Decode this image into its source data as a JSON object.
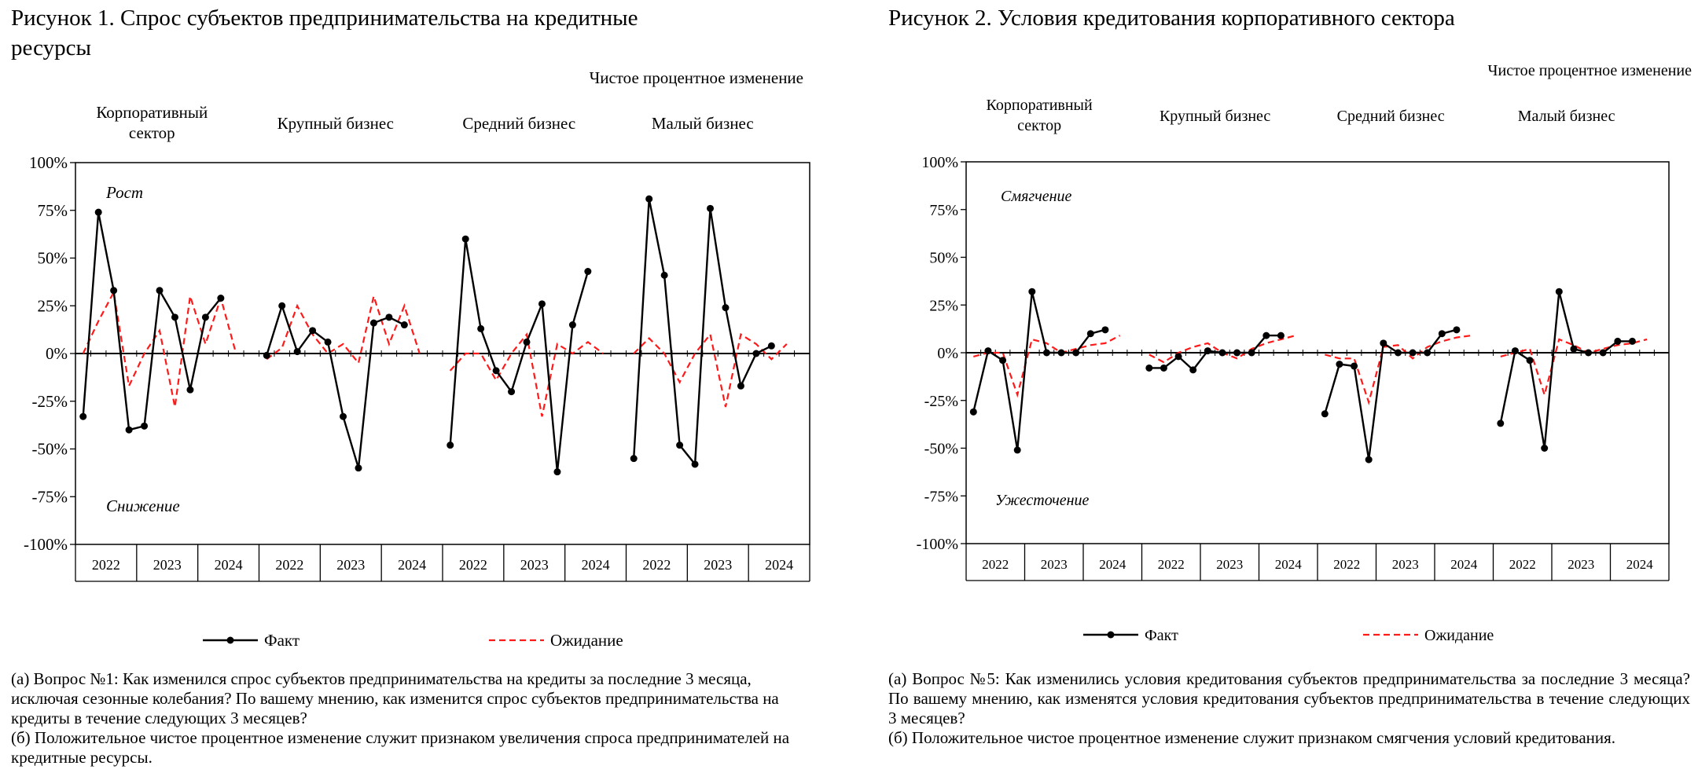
{
  "figures": [
    {
      "id": "fig1",
      "title": "Рисунок 1. Спрос субъектов предпринимательства на кредитные ресурсы",
      "title_lines": [
        "Рисунок 1. Спрос субъектов предпринимательства на кредитные",
        "ресурсы"
      ],
      "unit_label": "Чистое процентное изменение",
      "up_label": "Рост",
      "down_label": "Снижение",
      "notes": [
        "(а) Вопрос №1: Как изменился спрос субъектов предпринимательства на кредиты за последние 3 месяца, исключая сезонные колебания? По вашему мнению, как изменится спрос субъектов предпринимательства на кредиты в течение следующих 3 месяцев?",
        "(б) Положительное чистое процентное изменение служит признаком увеличения спроса предпринимателей на кредитные ресурсы."
      ]
    },
    {
      "id": "fig2",
      "title": "Рисунок 2. Условия кредитования корпоративного сектора",
      "title_lines": [
        "Рисунок 2. Условия кредитования корпоративного сектора"
      ],
      "unit_label": "Чистое процентное изменение",
      "up_label": "Смягчение",
      "down_label": "Ужесточение",
      "notes": [
        "(а) Вопрос №5: Как изменились условия кредитования субъектов предпринимательства за последние 3 месяца? По вашему мнению, как изменятся условия кредитования субъектов предпринимательства в течение следующих 3 месяцев?",
        "(б) Положительное чистое процентное изменение служит признаком смягчения условий кредитования."
      ]
    }
  ],
  "chart_data": [
    {
      "type": "line",
      "title": "Рисунок 1. Спрос субъектов предпринимательства на кредитные ресурсы",
      "ylabel": "Чистое процентное изменение",
      "ylim": [
        -100,
        100
      ],
      "yticks": [
        -100,
        -75,
        -50,
        -25,
        0,
        25,
        50,
        75,
        100
      ],
      "ytick_labels": [
        "-100%",
        "-75%",
        "-50%",
        "-25%",
        "0%",
        "25%",
        "50%",
        "75%",
        "100%"
      ],
      "grid": false,
      "legend": "bottom",
      "series_names": [
        "Факт",
        "Ожидание"
      ],
      "groups": [
        {
          "name_lines": [
            "Корпоративный",
            "сектор"
          ],
          "years": [
            "2022",
            "2023",
            "2024"
          ],
          "fact": [
            -33,
            74,
            33,
            -40,
            -38,
            33,
            19,
            -19,
            19,
            29
          ],
          "expect": [
            0,
            17,
            32,
            -17,
            0,
            12,
            -28,
            30,
            5,
            29,
            0
          ]
        },
        {
          "name_lines": [
            "Крупный бизнес"
          ],
          "years": [
            "2022",
            "2023",
            "2024"
          ],
          "fact": [
            -1,
            25,
            1,
            12,
            6,
            -33,
            -60,
            16,
            19,
            15
          ],
          "expect": [
            -3,
            3,
            25,
            10,
            0,
            5,
            -5,
            30,
            5,
            25,
            0
          ]
        },
        {
          "name_lines": [
            "Средний бизнес"
          ],
          "years": [
            "2022",
            "2023",
            "2024"
          ],
          "fact": [
            -48,
            60,
            13,
            -9,
            -20,
            6,
            26,
            -62,
            15,
            43
          ],
          "expect": [
            -9,
            0,
            0,
            -14,
            0,
            10,
            -33,
            5,
            0,
            6,
            0
          ]
        },
        {
          "name_lines": [
            "Малый бизнес"
          ],
          "years": [
            "2022",
            "2023",
            "2024"
          ],
          "fact": [
            -55,
            81,
            41,
            -48,
            -58,
            76,
            24,
            -17,
            0,
            4
          ],
          "expect": [
            0,
            8,
            0,
            -15,
            0,
            10,
            -28,
            10,
            5,
            -3,
            5
          ]
        }
      ]
    },
    {
      "type": "line",
      "title": "Рисунок 2. Условия кредитования корпоративного сектора",
      "ylabel": "Чистое процентное изменение",
      "ylim": [
        -100,
        100
      ],
      "yticks": [
        -100,
        -75,
        -50,
        -25,
        0,
        25,
        50,
        75,
        100
      ],
      "ytick_labels": [
        "-100%",
        "-75%",
        "-50%",
        "-25%",
        "0%",
        "25%",
        "50%",
        "75%",
        "100%"
      ],
      "grid": false,
      "legend": "bottom",
      "series_names": [
        "Факт",
        "Ожидание"
      ],
      "groups": [
        {
          "name_lines": [
            "Корпоративный",
            "сектор"
          ],
          "years": [
            "2022",
            "2023",
            "2024"
          ],
          "fact": [
            -31,
            1,
            -4,
            -51,
            32,
            0,
            0,
            0,
            10,
            12
          ],
          "expect": [
            -2,
            0,
            0,
            -22,
            7,
            5,
            0,
            2,
            4,
            5,
            9
          ]
        },
        {
          "name_lines": [
            "Крупный бизнес"
          ],
          "years": [
            "2022",
            "2023",
            "2024"
          ],
          "fact": [
            -8,
            -8,
            -2,
            -9,
            1,
            0,
            0,
            0,
            9,
            9
          ],
          "expect": [
            -1,
            -5,
            0,
            3,
            5,
            0,
            -3,
            2,
            5,
            7,
            9
          ]
        },
        {
          "name_lines": [
            "Средний бизнес"
          ],
          "years": [
            "2022",
            "2023",
            "2024"
          ],
          "fact": [
            -32,
            -6,
            -7,
            -56,
            5,
            0,
            0,
            0,
            10,
            12
          ],
          "expect": [
            -1,
            -3,
            -3,
            -26,
            3,
            4,
            -3,
            3,
            6,
            8,
            9
          ]
        },
        {
          "name_lines": [
            "Малый бизнес"
          ],
          "years": [
            "2022",
            "2023",
            "2024"
          ],
          "fact": [
            -37,
            1,
            -4,
            -50,
            32,
            2,
            0,
            0,
            6,
            6
          ],
          "expect": [
            -2,
            0,
            2,
            -22,
            7,
            4,
            0,
            2,
            4,
            5,
            7
          ]
        }
      ]
    }
  ]
}
